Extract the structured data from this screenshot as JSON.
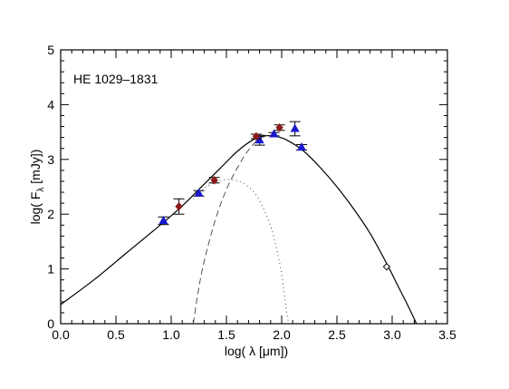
{
  "chart_data": {
    "type": "scatter",
    "annotation": "HE 1029–1831",
    "xlabel": "log( λ [μm])",
    "ylabel": "log( Fλ [mJy])",
    "ylabel_parts": {
      "prefix": "log( F",
      "subscript": "λ",
      "suffix": " [mJy])"
    },
    "xlim": [
      0.0,
      3.5
    ],
    "ylim": [
      0,
      5
    ],
    "x_ticks": [
      0.0,
      0.5,
      1.0,
      1.5,
      2.0,
      2.5,
      3.0,
      3.5
    ],
    "x_tick_labels": [
      "0.0",
      "0.5",
      "1.0",
      "1.5",
      "2.0",
      "2.5",
      "3.0",
      "3.5"
    ],
    "y_ticks": [
      0,
      1,
      2,
      3,
      4,
      5
    ],
    "y_tick_labels": [
      "0",
      "1",
      "2",
      "3",
      "4",
      "5"
    ],
    "grid": false,
    "series": [
      {
        "marker": "triangle",
        "color": "#1a1acc",
        "points": [
          {
            "x": 0.93,
            "y": 1.88,
            "err": 0.07
          },
          {
            "x": 1.25,
            "y": 2.38,
            "err": 0.05
          },
          {
            "x": 1.8,
            "y": 3.35,
            "err": 0.09
          },
          {
            "x": 1.93,
            "y": 3.46,
            "err": 0.03
          },
          {
            "x": 2.12,
            "y": 3.56,
            "err": 0.13
          },
          {
            "x": 2.18,
            "y": 3.22,
            "err": 0.05
          }
        ]
      },
      {
        "marker": "diamond",
        "color": "#8b1a1a",
        "points": [
          {
            "x": 1.07,
            "y": 2.14,
            "err": 0.14
          },
          {
            "x": 1.39,
            "y": 2.62,
            "err": 0.05
          },
          {
            "x": 1.77,
            "y": 3.42,
            "err": 0.04
          },
          {
            "x": 1.98,
            "y": 3.58,
            "err": 0.05
          }
        ]
      },
      {
        "marker": "diamond-open",
        "color": "#000000",
        "points": [
          {
            "x": 2.95,
            "y": 1.04,
            "err": 0
          }
        ]
      }
    ],
    "model_curves": [
      {
        "style": "solid",
        "points": [
          [
            0.0,
            0.35
          ],
          [
            0.3,
            0.8
          ],
          [
            0.6,
            1.3
          ],
          [
            0.9,
            1.8
          ],
          [
            1.1,
            2.15
          ],
          [
            1.3,
            2.55
          ],
          [
            1.45,
            2.85
          ],
          [
            1.6,
            3.15
          ],
          [
            1.75,
            3.37
          ],
          [
            1.85,
            3.43
          ],
          [
            1.95,
            3.42
          ],
          [
            2.05,
            3.35
          ],
          [
            2.2,
            3.15
          ],
          [
            2.35,
            2.85
          ],
          [
            2.5,
            2.5
          ],
          [
            2.65,
            2.1
          ],
          [
            2.8,
            1.65
          ],
          [
            2.95,
            1.1
          ],
          [
            3.05,
            0.7
          ],
          [
            3.15,
            0.3
          ],
          [
            3.22,
            0.0
          ]
        ]
      },
      {
        "style": "dashed",
        "points": [
          [
            1.2,
            0.0
          ],
          [
            1.25,
            0.65
          ],
          [
            1.3,
            1.15
          ],
          [
            1.4,
            1.9
          ],
          [
            1.5,
            2.45
          ],
          [
            1.6,
            2.85
          ],
          [
            1.7,
            3.17
          ],
          [
            1.8,
            3.38
          ],
          [
            1.9,
            3.44
          ]
        ]
      },
      {
        "style": "dotted",
        "points": [
          [
            1.2,
            2.28
          ],
          [
            1.3,
            2.47
          ],
          [
            1.4,
            2.58
          ],
          [
            1.5,
            2.63
          ],
          [
            1.6,
            2.61
          ],
          [
            1.7,
            2.5
          ],
          [
            1.8,
            2.25
          ],
          [
            1.9,
            1.78
          ],
          [
            1.95,
            1.4
          ],
          [
            2.0,
            0.9
          ],
          [
            2.05,
            0.15
          ],
          [
            2.07,
            0.0
          ]
        ]
      }
    ]
  }
}
